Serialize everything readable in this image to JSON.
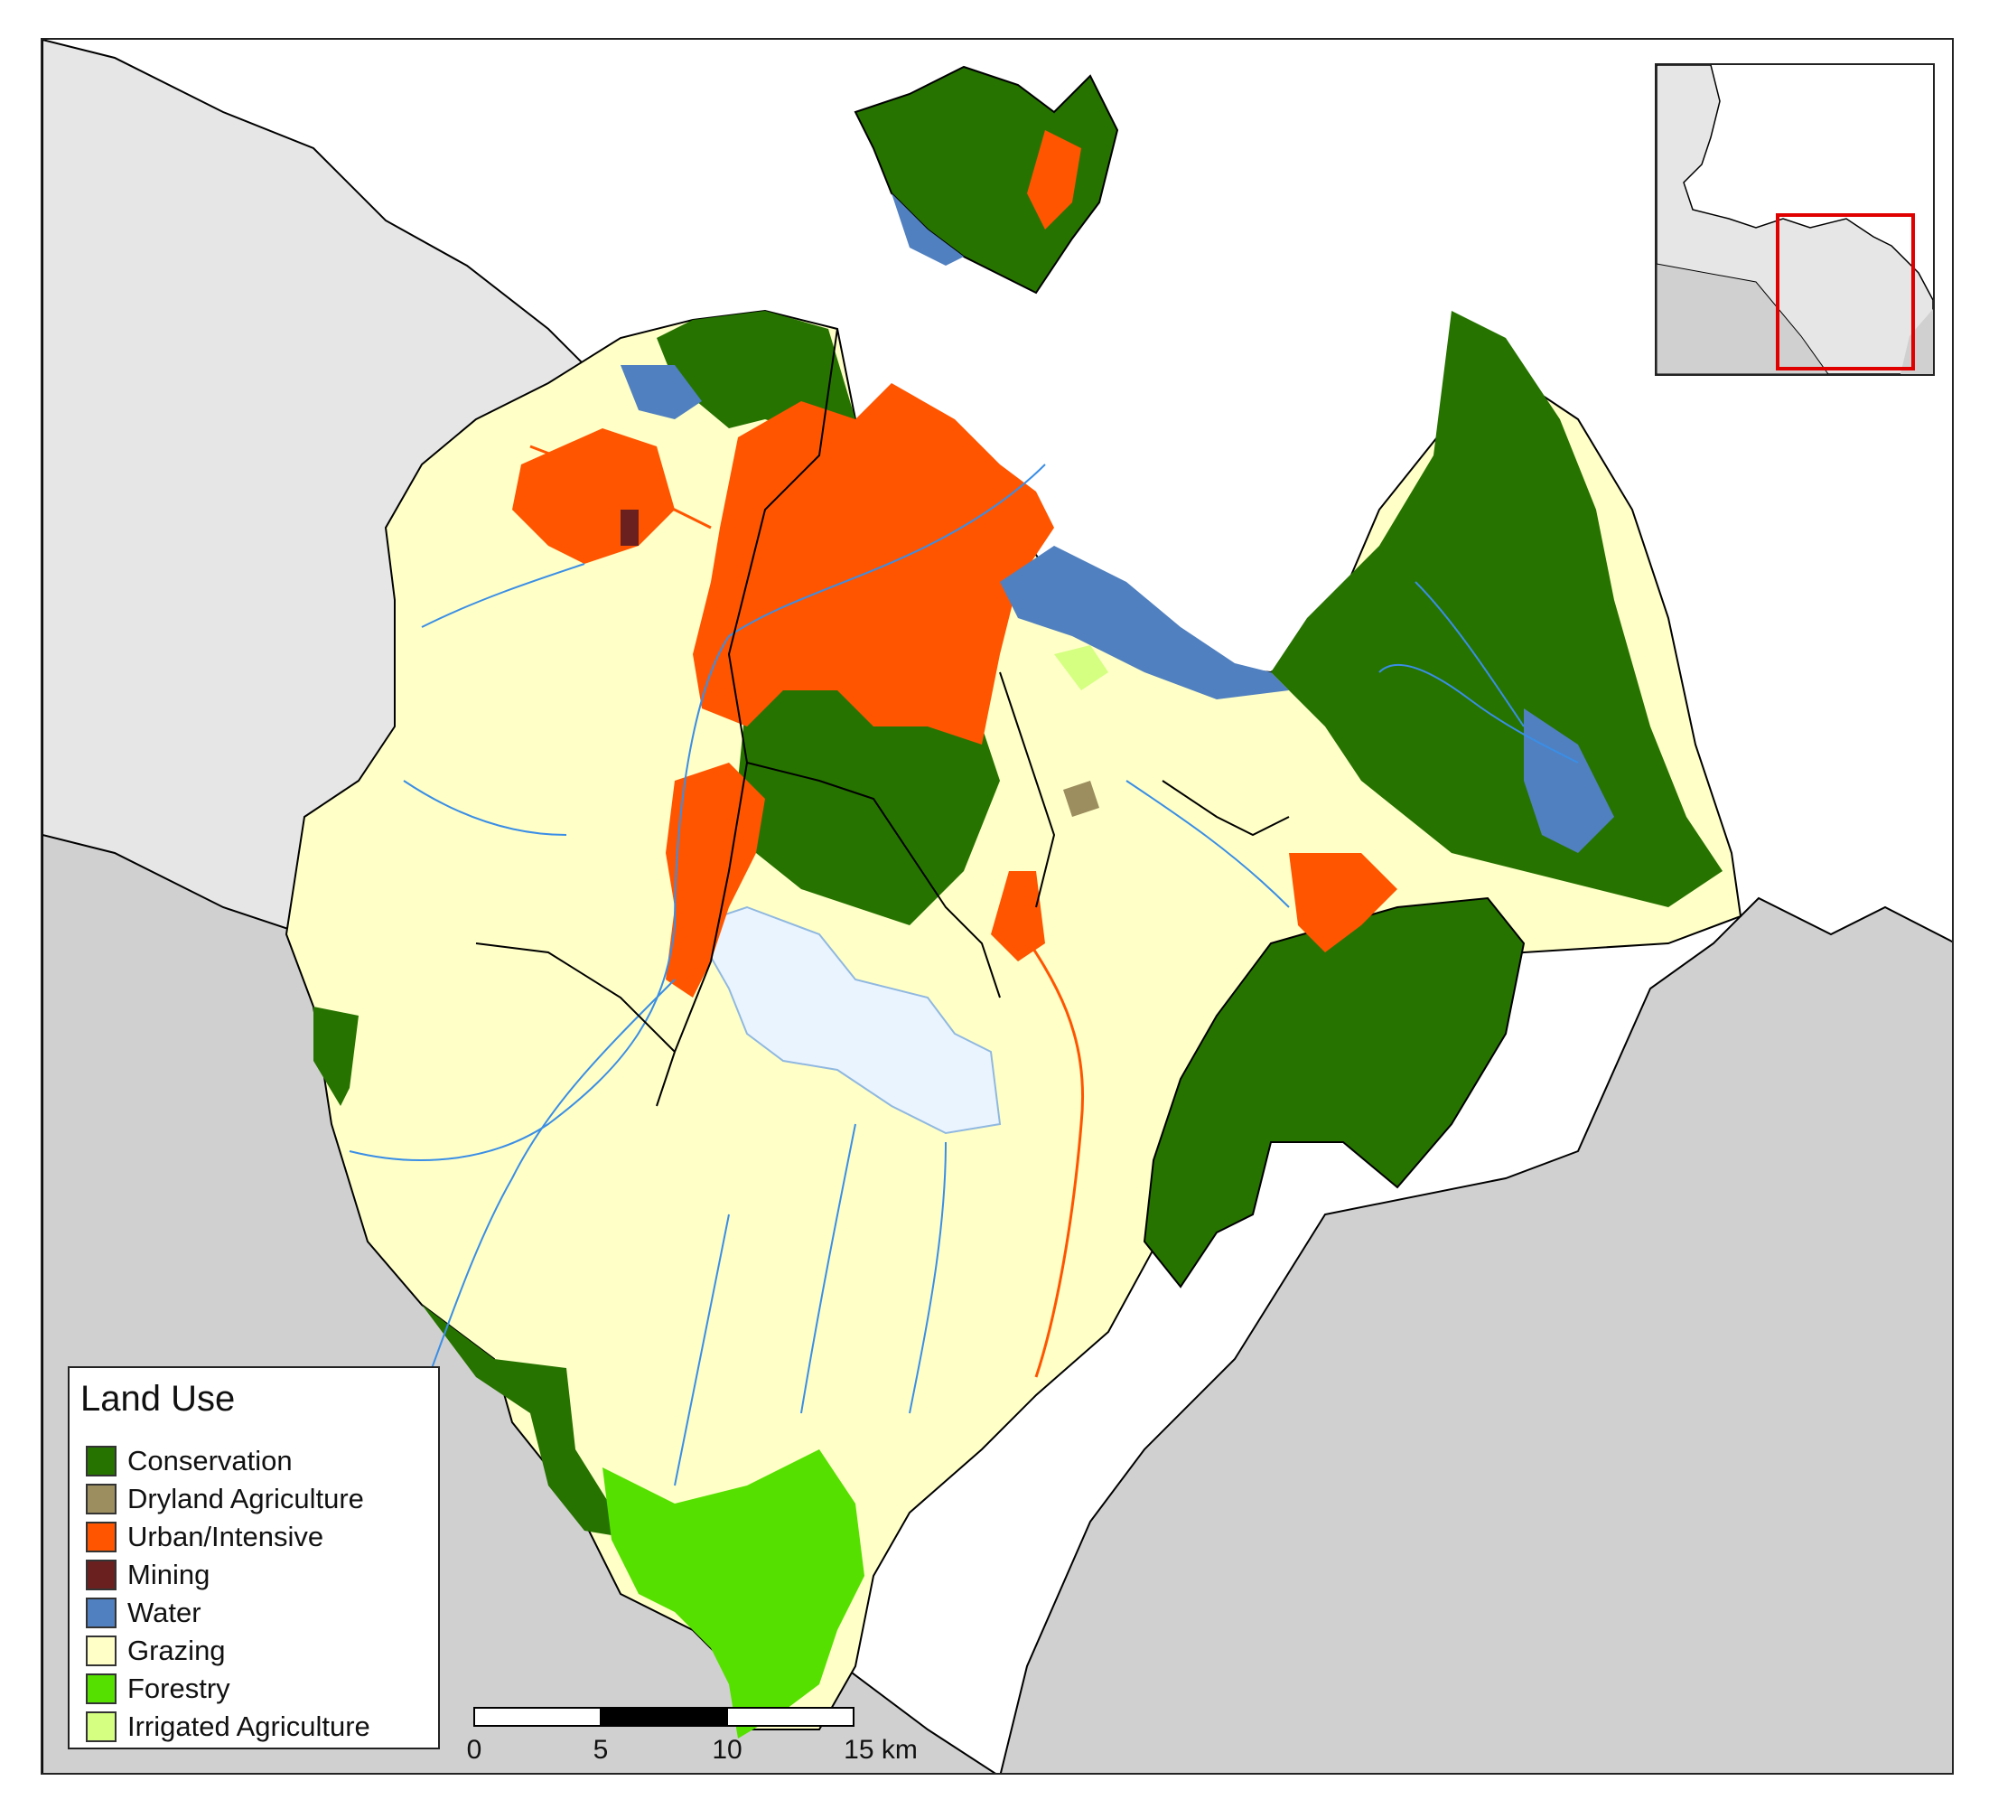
{
  "map": {
    "title": "Land Use",
    "legend": [
      {
        "label": "Conservation",
        "color": "#267300"
      },
      {
        "label": "Dryland Agriculture",
        "color": "#9C8E5E"
      },
      {
        "label": "Urban/Intensive",
        "color": "#FF5500"
      },
      {
        "label": "Mining",
        "color": "#6B2020"
      },
      {
        "label": "Water",
        "color": "#5080C0"
      },
      {
        "label": "Grazing",
        "color": "#FFFFC8"
      },
      {
        "label": "Forestry",
        "color": "#55E000"
      },
      {
        "label": "Irrigated Agriculture",
        "color": "#D4FF80"
      }
    ],
    "scale_bar": {
      "ticks": [
        "0",
        "5",
        "10",
        "15 km"
      ]
    },
    "colors": {
      "background_land": "#D0D0D0",
      "neighbour_land": "#E6E6E6",
      "sea": "#FFFFFF",
      "reservoir": "#EAF4FF",
      "rivers": "#3A8EE6",
      "inset_box": "#E00000"
    }
  }
}
